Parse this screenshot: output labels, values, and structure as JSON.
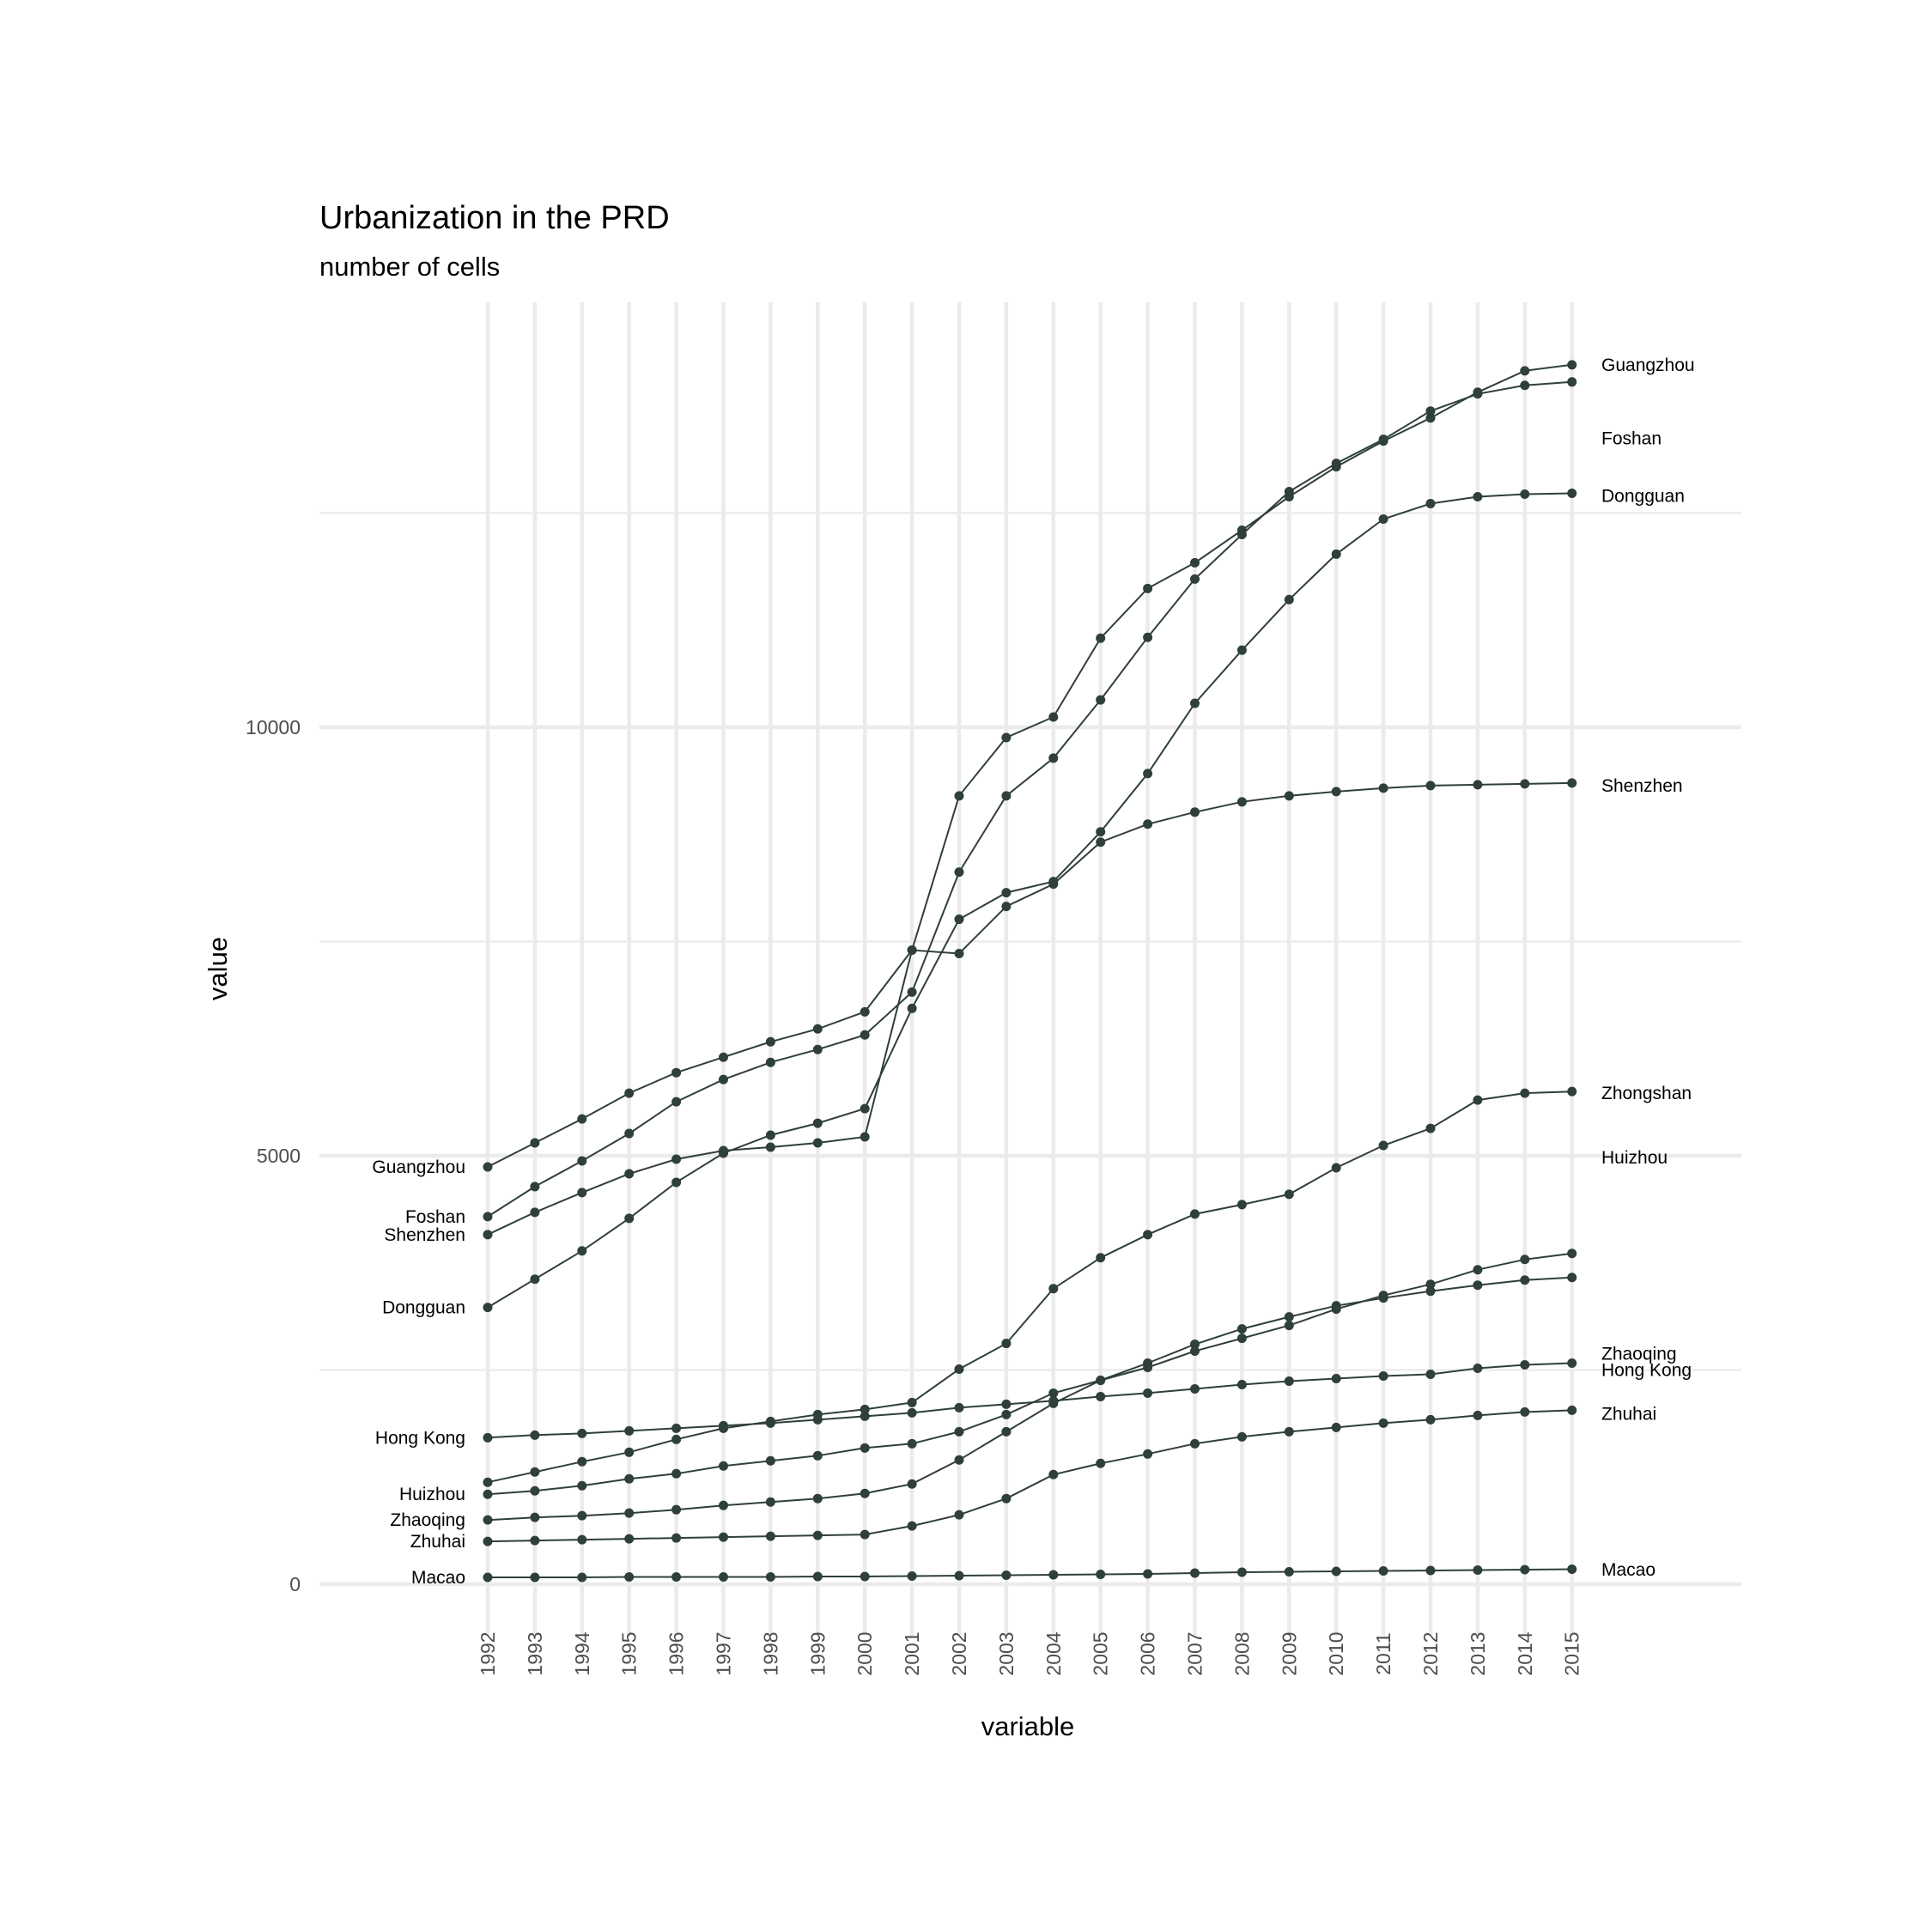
{
  "chart_data": {
    "type": "line",
    "title": "Urbanization in the PRD",
    "subtitle": "number of cells",
    "xlabel": "variable",
    "ylabel": "value",
    "ylim": [
      -700,
      17100
    ],
    "yticks": [
      0,
      5000,
      10000
    ],
    "yminor": [
      2500,
      7500,
      12500
    ],
    "grid": true,
    "legend": "none (direct labels at line start and end)",
    "line_color": "#2f3f3a",
    "x": [
      "1992",
      "1993",
      "1994",
      "1995",
      "1996",
      "1997",
      "1998",
      "1999",
      "2000",
      "2001",
      "2002",
      "2003",
      "2004",
      "2005",
      "2006",
      "2007",
      "2008",
      "2009",
      "2010",
      "2011",
      "2012",
      "2013",
      "2014",
      "2015"
    ],
    "series": [
      {
        "name": "Guangzhou",
        "values": [
          4870,
          5150,
          5430,
          5730,
          5970,
          6150,
          6330,
          6480,
          6680,
          7400,
          9200,
          9880,
          10120,
          11040,
          11620,
          11920,
          12300,
          12690,
          13040,
          13340,
          13610,
          13910,
          14160,
          14230
        ]
      },
      {
        "name": "Foshan",
        "values": [
          4290,
          4640,
          4940,
          5260,
          5630,
          5890,
          6090,
          6240,
          6410,
          6910,
          8310,
          9200,
          9640,
          10320,
          11050,
          11730,
          12250,
          12750,
          13080,
          13360,
          13690,
          13890,
          13990,
          14030
        ]
      },
      {
        "name": "Dongguan",
        "values": [
          3230,
          3560,
          3890,
          4270,
          4690,
          5030,
          5240,
          5380,
          5550,
          6720,
          7760,
          8070,
          8200,
          8780,
          9460,
          10280,
          10900,
          11490,
          12020,
          12430,
          12610,
          12690,
          12720,
          12730
        ]
      },
      {
        "name": "Shenzhen",
        "values": [
          4080,
          4340,
          4570,
          4790,
          4960,
          5060,
          5100,
          5150,
          5220,
          7400,
          7360,
          7910,
          8170,
          8660,
          8870,
          9010,
          9130,
          9200,
          9250,
          9290,
          9320,
          9330,
          9340,
          9350
        ]
      },
      {
        "name": "Zhongshan",
        "values": [
          1190,
          1310,
          1430,
          1540,
          1690,
          1820,
          1900,
          1980,
          2040,
          2120,
          2510,
          2810,
          3450,
          3810,
          4080,
          4320,
          4430,
          4550,
          4860,
          5120,
          5320,
          5650,
          5730,
          5750
        ]
      },
      {
        "name": "Huizhou",
        "values": [
          1050,
          1090,
          1150,
          1230,
          1290,
          1380,
          1440,
          1500,
          1590,
          1640,
          1780,
          1980,
          2230,
          2380,
          2580,
          2800,
          2980,
          3120,
          3250,
          3340,
          3420,
          3490,
          3550,
          3580
        ]
      },
      {
        "name": "Zhaoqing",
        "values": [
          750,
          780,
          800,
          830,
          870,
          920,
          960,
          1000,
          1060,
          1170,
          1450,
          1780,
          2110,
          2380,
          2530,
          2720,
          2870,
          3020,
          3210,
          3370,
          3500,
          3670,
          3790,
          3860
        ]
      },
      {
        "name": "Hong Kong",
        "values": [
          1710,
          1740,
          1760,
          1790,
          1820,
          1850,
          1880,
          1920,
          1960,
          2000,
          2060,
          2100,
          2140,
          2190,
          2230,
          2280,
          2330,
          2370,
          2400,
          2430,
          2450,
          2520,
          2560,
          2580
        ]
      },
      {
        "name": "Zhuhai",
        "values": [
          500,
          510,
          520,
          530,
          540,
          550,
          560,
          570,
          580,
          680,
          810,
          1000,
          1280,
          1410,
          1520,
          1640,
          1720,
          1780,
          1830,
          1880,
          1920,
          1970,
          2010,
          2030
        ]
      },
      {
        "name": "Macao",
        "values": [
          80,
          80,
          80,
          85,
          85,
          85,
          85,
          90,
          90,
          95,
          100,
          105,
          110,
          115,
          120,
          130,
          140,
          145,
          150,
          155,
          160,
          165,
          170,
          175
        ]
      }
    ],
    "start_labels": [
      {
        "name": "Guangzhou",
        "y": 4870
      },
      {
        "name": "Foshan",
        "y": 4290
      },
      {
        "name": "Shenzhen",
        "y": 4080
      },
      {
        "name": "Dongguan",
        "y": 3230
      },
      {
        "name": "Hong Kong",
        "y": 1710
      },
      {
        "name": "Huizhou",
        "y": 1050
      },
      {
        "name": "Zhaoqing",
        "y": 750
      },
      {
        "name": "Zhuhai",
        "y": 500
      },
      {
        "name": "Macao",
        "y": 80
      }
    ],
    "end_labels": [
      {
        "name": "Guangzhou",
        "y": 14230
      },
      {
        "name": "Foshan",
        "y": 13370
      },
      {
        "name": "Dongguan",
        "y": 12700
      },
      {
        "name": "Shenzhen",
        "y": 9320
      },
      {
        "name": "Zhongshan",
        "y": 5730
      },
      {
        "name": "Huizhou",
        "y": 4980
      },
      {
        "name": "Zhaoqing",
        "y": 2690
      },
      {
        "name": "Hong Kong",
        "y": 2500
      },
      {
        "name": "Zhuhai",
        "y": 1990
      },
      {
        "name": "Macao",
        "y": 170
      }
    ]
  }
}
